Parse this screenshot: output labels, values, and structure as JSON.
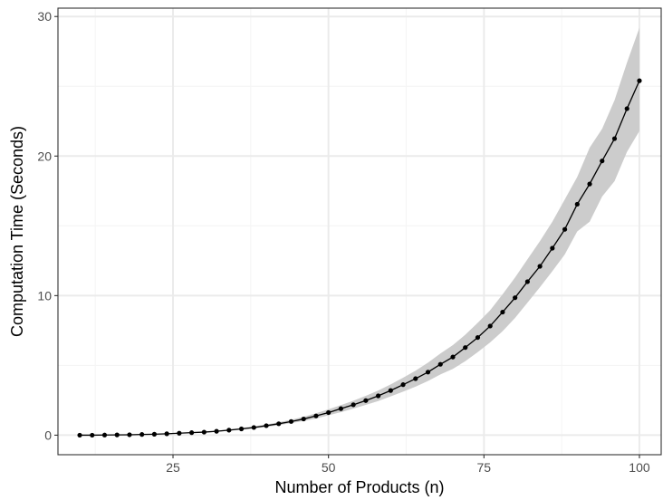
{
  "chart_data": {
    "type": "line",
    "title": "",
    "xlabel": "Number of Products (n)",
    "ylabel": "Computation Time (Seconds)",
    "xlim": [
      6.5,
      103.5
    ],
    "ylim": [
      -1.4,
      30.6
    ],
    "x_ticks": [
      25,
      50,
      75,
      100
    ],
    "x_tick_labels": [
      "25",
      "50",
      "75",
      "100"
    ],
    "y_ticks": [
      0,
      10,
      20,
      30
    ],
    "y_tick_labels": [
      "0",
      "10",
      "20",
      "30"
    ],
    "grid": true,
    "legend": "none",
    "series": [
      {
        "x": [
          10,
          12,
          14,
          16,
          18,
          20,
          22,
          24,
          26,
          28,
          30,
          32,
          34,
          36,
          38,
          40,
          42,
          44,
          46,
          48,
          50,
          52,
          54,
          56,
          58,
          60,
          62,
          64,
          66,
          68,
          70,
          72,
          74,
          76,
          78,
          80,
          82,
          84,
          86,
          88,
          90,
          92,
          94,
          96,
          98,
          100
        ],
        "y": [
          0.0,
          0.0,
          0.01,
          0.02,
          0.03,
          0.05,
          0.07,
          0.1,
          0.14,
          0.18,
          0.22,
          0.28,
          0.36,
          0.45,
          0.55,
          0.68,
          0.82,
          0.98,
          1.16,
          1.38,
          1.62,
          1.9,
          2.18,
          2.48,
          2.82,
          3.2,
          3.62,
          4.05,
          4.52,
          5.08,
          5.6,
          6.28,
          7.0,
          7.82,
          8.82,
          9.85,
          11.0,
          12.1,
          13.4,
          14.75,
          16.55,
          18.0,
          19.65,
          21.25,
          23.4,
          25.4
        ],
        "lower": [
          0.0,
          0.0,
          0.0,
          0.01,
          0.02,
          0.03,
          0.05,
          0.08,
          0.11,
          0.15,
          0.19,
          0.24,
          0.31,
          0.39,
          0.48,
          0.59,
          0.72,
          0.86,
          1.02,
          1.2,
          1.42,
          1.65,
          1.9,
          2.17,
          2.45,
          2.78,
          3.12,
          3.48,
          3.88,
          4.35,
          4.75,
          5.3,
          5.95,
          6.65,
          7.45,
          8.4,
          9.5,
          10.6,
          11.75,
          12.95,
          14.6,
          15.3,
          17.1,
          18.2,
          20.3,
          21.8
        ],
        "upper": [
          0.0,
          0.01,
          0.02,
          0.03,
          0.05,
          0.07,
          0.1,
          0.13,
          0.17,
          0.22,
          0.27,
          0.33,
          0.42,
          0.52,
          0.63,
          0.77,
          0.93,
          1.11,
          1.32,
          1.57,
          1.85,
          2.15,
          2.47,
          2.82,
          3.2,
          3.64,
          4.12,
          4.62,
          5.2,
          5.85,
          6.45,
          7.2,
          8.05,
          8.95,
          10.1,
          11.3,
          12.6,
          13.9,
          15.3,
          16.9,
          18.5,
          20.6,
          21.95,
          24.0,
          26.7,
          29.2
        ]
      }
    ],
    "colors": {
      "line": "#000000",
      "ribbon": "#cccccc",
      "grid_major": "#ebebeb",
      "grid_minor": "#f5f5f5",
      "panel_border": "#333333",
      "tick_text": "#4d4d4d"
    }
  }
}
